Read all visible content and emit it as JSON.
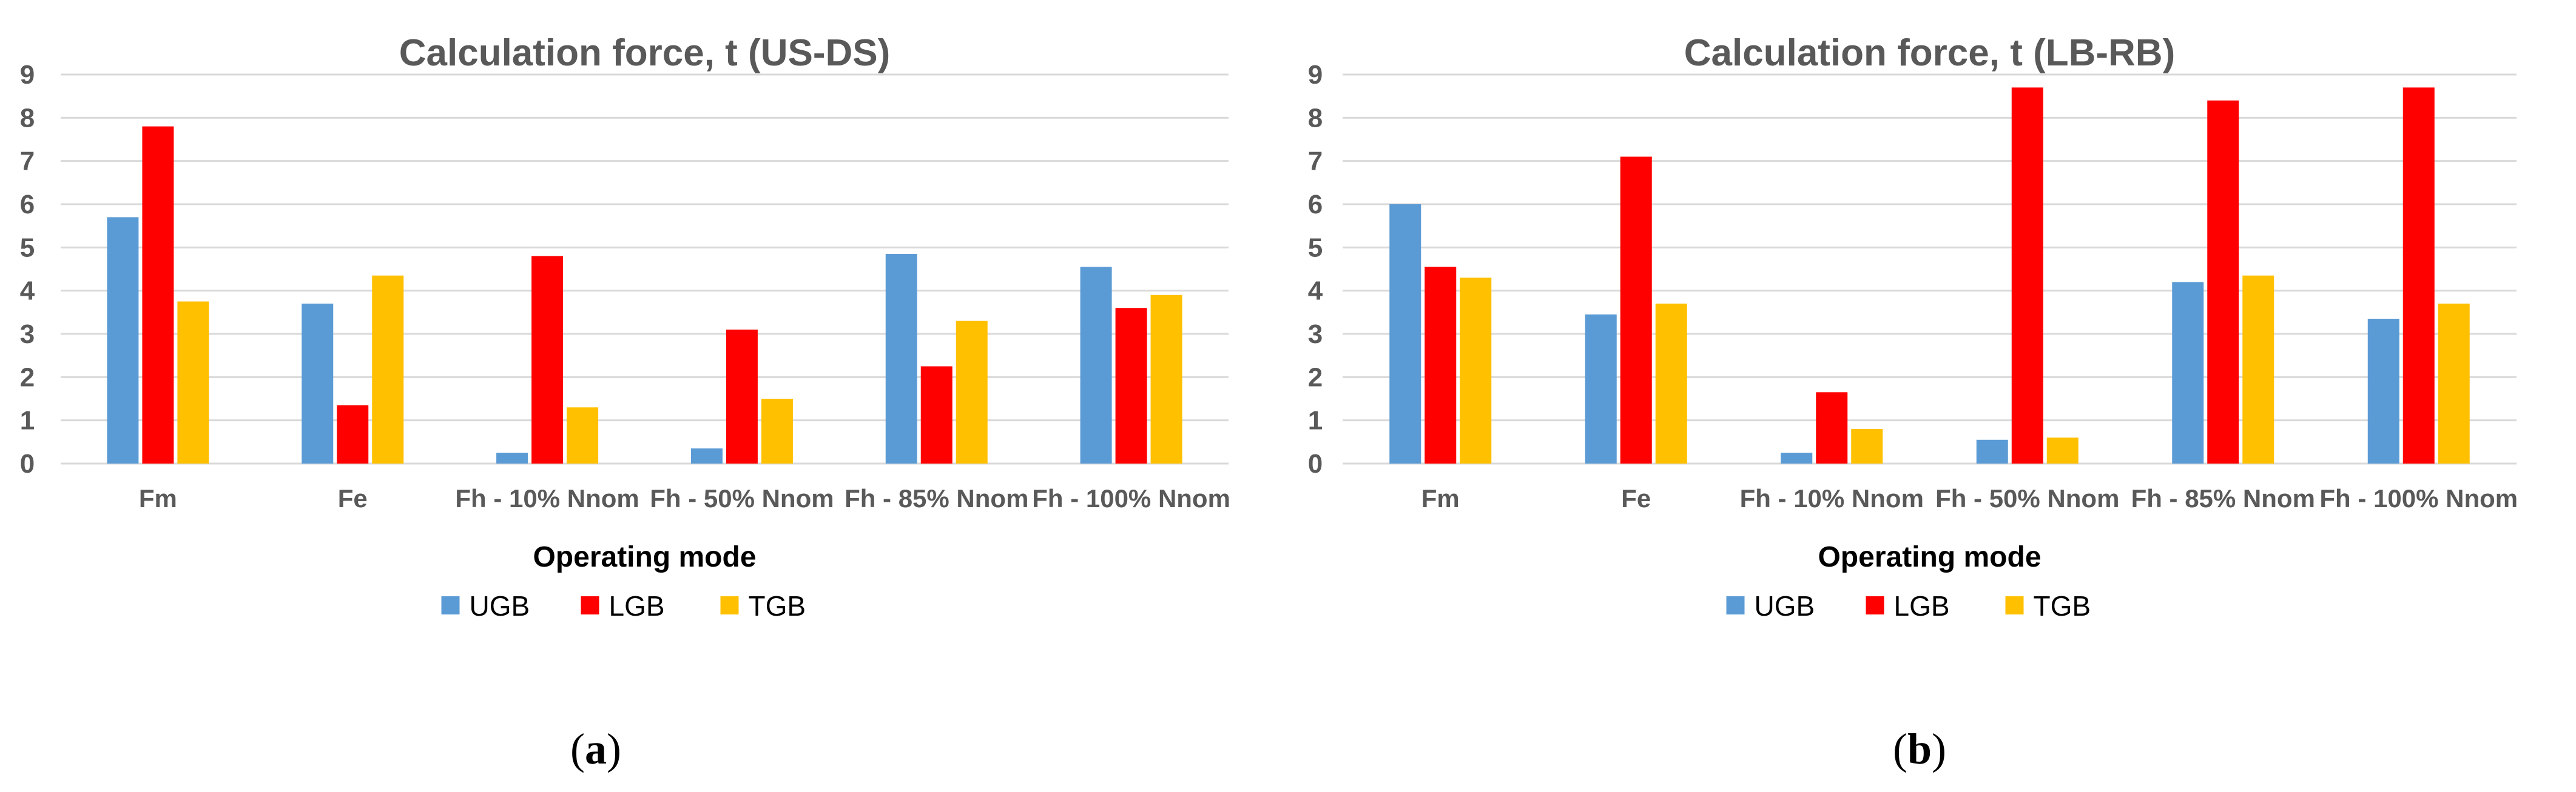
{
  "chart_data": [
    {
      "panel": "(a)",
      "type": "bar",
      "title": "Calculation force, t (US-DS)",
      "xlabel": "Operating mode",
      "ylabel": "",
      "ylim": [
        0,
        9
      ],
      "yticks": [
        0,
        1,
        2,
        3,
        4,
        5,
        6,
        7,
        8,
        9
      ],
      "grid": true,
      "legend_position": "bottom",
      "categories": [
        "Fm",
        "Fe",
        "Fh - 10% Nnom",
        "Fh - 50% Nnom",
        "Fh - 85% Nnom",
        "Fh - 100% Nnom"
      ],
      "series": [
        {
          "name": "UGB",
          "color": "#5B9BD5",
          "values": [
            5.7,
            3.7,
            0.25,
            0.35,
            4.85,
            4.55
          ]
        },
        {
          "name": "LGB",
          "color": "#FF0000",
          "values": [
            7.8,
            1.35,
            4.8,
            3.1,
            2.25,
            3.6
          ]
        },
        {
          "name": "TGB",
          "color": "#FFC000",
          "values": [
            3.75,
            4.35,
            1.3,
            1.5,
            3.3,
            3.9
          ]
        }
      ]
    },
    {
      "panel": "(b)",
      "type": "bar",
      "title": "Calculation force, t (LB-RB)",
      "xlabel": "Operating mode",
      "ylabel": "",
      "ylim": [
        0,
        9
      ],
      "yticks": [
        0,
        1,
        2,
        3,
        4,
        5,
        6,
        7,
        8,
        9
      ],
      "grid": true,
      "legend_position": "bottom",
      "categories": [
        "Fm",
        "Fe",
        "Fh - 10% Nnom",
        "Fh - 50% Nnom",
        "Fh - 85% Nnom",
        "Fh - 100% Nnom"
      ],
      "series": [
        {
          "name": "UGB",
          "color": "#5B9BD5",
          "values": [
            6.0,
            3.45,
            0.25,
            0.55,
            4.2,
            3.35
          ]
        },
        {
          "name": "LGB",
          "color": "#FF0000",
          "values": [
            4.55,
            7.1,
            1.65,
            8.7,
            8.4,
            8.7
          ]
        },
        {
          "name": "TGB",
          "color": "#FFC000",
          "values": [
            4.3,
            3.7,
            0.8,
            0.6,
            4.35,
            3.7
          ]
        }
      ]
    }
  ]
}
